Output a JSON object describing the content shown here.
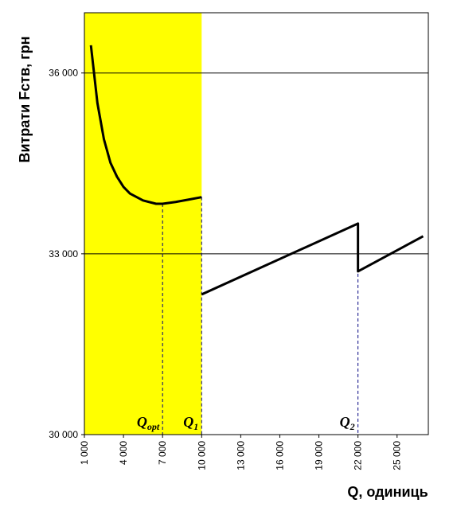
{
  "chart_data": {
    "type": "line",
    "y_label": "Витрати  Fств, грн",
    "x_label": "Q, одиниць",
    "x": [
      1500,
      2000,
      2500,
      3000,
      3500,
      4000,
      4500,
      5500,
      6500,
      7000,
      8000,
      9000,
      10000,
      10000,
      10000,
      22000,
      22000,
      27000
    ],
    "series": [
      {
        "color": "#000000",
        "values": [
          36460,
          35500,
          34900,
          34510,
          34280,
          34110,
          34000,
          33885,
          33830,
          33830,
          33860,
          33900,
          33940,
          null,
          32326,
          33502,
          32709,
          33291
        ]
      }
    ],
    "xlim": [
      1000,
      27400
    ],
    "ylim": [
      30000,
      37000
    ],
    "xticks": [
      {
        "value": 1000,
        "label": "1 000"
      },
      {
        "value": 4000,
        "label": "4 000"
      },
      {
        "value": 7000,
        "label": "7 000"
      },
      {
        "value": 10000,
        "label": "10 000"
      },
      {
        "value": 13000,
        "label": "13 000"
      },
      {
        "value": 16000,
        "label": "16 000"
      },
      {
        "value": 19000,
        "label": "19 000"
      },
      {
        "value": 22000,
        "label": "22 000"
      },
      {
        "value": 25000,
        "label": "25 000"
      }
    ],
    "yticks": [
      {
        "value": 30000,
        "label": "30 000"
      },
      {
        "value": 33000,
        "label": "33 000"
      },
      {
        "value": 36000,
        "label": "36 000"
      }
    ],
    "grid": true,
    "shaded_region": {
      "from": 1000,
      "to": 10000,
      "color": "#ffff00"
    },
    "annotations": [
      {
        "text": "Q",
        "sub": "opt",
        "x": 7000
      },
      {
        "text": "Q",
        "sub": "1",
        "x": 10000
      },
      {
        "text": "Q",
        "sub": "2",
        "x": 22000
      }
    ]
  }
}
